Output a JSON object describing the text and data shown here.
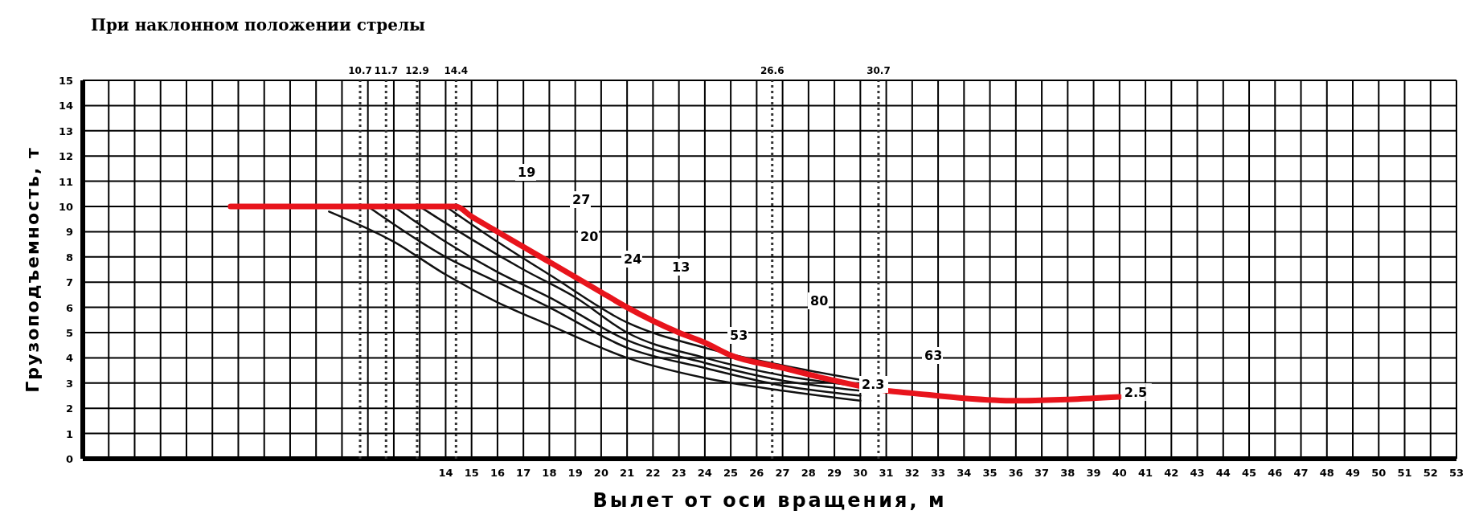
{
  "chart_data": {
    "type": "line",
    "title": "При наклонном положении стрелы",
    "xlabel": "Вылет от оси вращения, м",
    "ylabel": "Грузоподъемность, т",
    "xlim": [
      0,
      53
    ],
    "ylim": [
      0,
      15
    ],
    "xticks": [
      {
        "value": 0,
        "label": null
      },
      {
        "value": 1,
        "label": null
      },
      {
        "value": 2,
        "label": null
      },
      {
        "value": 3,
        "label": null
      },
      {
        "value": 4,
        "label": null
      },
      {
        "value": 5,
        "label": null
      },
      {
        "value": 6,
        "label": null
      },
      {
        "value": 7,
        "label": null
      },
      {
        "value": 8,
        "label": null
      },
      {
        "value": 9,
        "label": null
      },
      {
        "value": 10,
        "label": null
      },
      {
        "value": 11,
        "label": null
      },
      {
        "value": 12,
        "label": null
      },
      {
        "value": 13,
        "label": null
      },
      14,
      15,
      16,
      17,
      18,
      19,
      20,
      21,
      22,
      23,
      24,
      25,
      26,
      27,
      28,
      29,
      30,
      31,
      32,
      33,
      34,
      35,
      36,
      37,
      38,
      39,
      40,
      41,
      42,
      43,
      44,
      45,
      46,
      47,
      48,
      49,
      50,
      51,
      52,
      53
    ],
    "yticks": [
      0,
      1,
      2,
      3,
      4,
      5,
      6,
      7,
      8,
      9,
      10,
      11,
      12,
      13,
      14,
      15
    ],
    "grid": true,
    "line_style": "solid",
    "series": [
      {
        "color": "#111111",
        "x": [
          9.5,
          12,
          14,
          16,
          18,
          21,
          24,
          27,
          30
        ],
        "values": [
          9.8,
          8.6,
          7.3,
          6.2,
          5.3,
          4.0,
          3.2,
          2.7,
          2.3
        ]
      },
      {
        "color": "#111111",
        "x": [
          11,
          14,
          16,
          18,
          21,
          24,
          27,
          30
        ],
        "values": [
          10,
          8.0,
          7.0,
          6.0,
          4.4,
          3.6,
          2.9,
          2.5
        ]
      },
      {
        "color": "#111111",
        "x": [
          12,
          14,
          16,
          18,
          21,
          24,
          27,
          30
        ],
        "values": [
          10,
          8.6,
          7.4,
          6.4,
          4.7,
          3.8,
          3.1,
          2.7
        ]
      },
      {
        "color": "#111111",
        "x": [
          13,
          15,
          17,
          19,
          21,
          24,
          27,
          30.7
        ],
        "values": [
          10,
          8.7,
          7.5,
          6.4,
          5.0,
          4.0,
          3.3,
          2.8
        ]
      },
      {
        "color": "#111111",
        "x": [
          14,
          16,
          18,
          21,
          24,
          27,
          30.7
        ],
        "values": [
          10,
          8.6,
          7.3,
          5.4,
          4.4,
          3.7,
          3.0
        ]
      },
      {
        "color": "#e8141c",
        "x": [
          5.7,
          14.4,
          15,
          16,
          18,
          20,
          21,
          23,
          24,
          25,
          27,
          29,
          31,
          32,
          34,
          36,
          38,
          40
        ],
        "values": [
          10,
          10,
          9.6,
          9.0,
          7.8,
          6.6,
          6.0,
          5.0,
          4.6,
          4.1,
          3.6,
          3.1,
          2.7,
          2.6,
          2.4,
          2.3,
          2.35,
          2.45
        ]
      }
    ],
    "ref_lines": [
      {
        "axis": "x",
        "value": 10.7,
        "label": "10.7",
        "line_style": "dotted"
      },
      {
        "axis": "x",
        "value": 11.7,
        "label": "11.7",
        "line_style": "dotted"
      },
      {
        "axis": "x",
        "value": 12.9,
        "label": "12.9",
        "line_style": "dotted"
      },
      {
        "axis": "x",
        "value": 14.4,
        "label": "14.4",
        "line_style": "dotted"
      },
      {
        "axis": "x",
        "value": 26.6,
        "label": "26.6",
        "line_style": "dotted"
      },
      {
        "axis": "x",
        "value": 30.7,
        "label": "30.7",
        "line_style": "dotted"
      }
    ],
    "annotations": [
      "19",
      "27",
      "20",
      "24",
      "13",
      "53",
      "80",
      "2.3",
      "63",
      {
        "text": "2.5",
        "x": 40,
        "y": 2.45
      }
    ]
  }
}
